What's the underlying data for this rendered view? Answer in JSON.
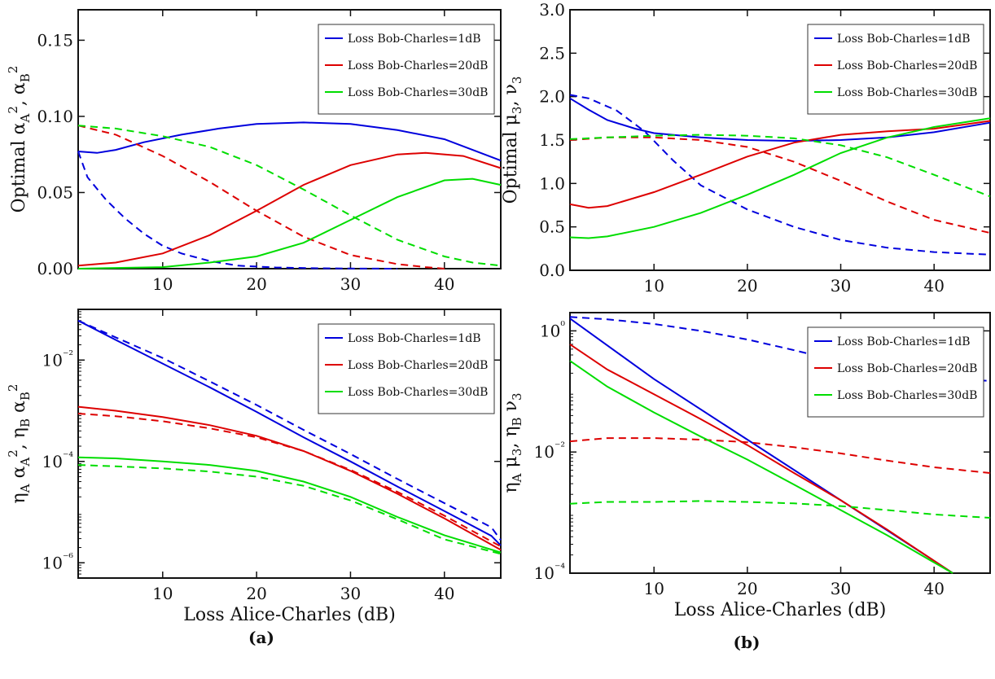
{
  "figure": {
    "captions": [
      "(a)",
      "(b)"
    ],
    "legend": [
      "Loss Bob-Charles=1dB",
      "Loss Bob-Charles=20dB",
      "Loss Bob-Charles=30dB"
    ],
    "colors": [
      "#0000dd",
      "#dd0000",
      "#00dd00"
    ]
  },
  "chart_data": [
    {
      "id": "top-left",
      "type": "line",
      "ylabel": "Optimal α_A², α_B²",
      "xlabel": "",
      "xlim": [
        1,
        46
      ],
      "ylim": [
        0,
        0.17
      ],
      "yscale": "linear",
      "xticks": [
        10,
        20,
        30,
        40
      ],
      "yticks": [
        0,
        0.05,
        0.1,
        0.15
      ],
      "ytick_labels": [
        "0.00",
        "0.05",
        "0.10",
        "0.15"
      ],
      "legend_position": "top-right",
      "series": [
        {
          "name": "Loss Bob-Charles=1dB",
          "style": "solid",
          "x": [
            1,
            3,
            5,
            8,
            12,
            16,
            20,
            25,
            30,
            35,
            40,
            43,
            46
          ],
          "y": [
            0.077,
            0.076,
            0.078,
            0.083,
            0.088,
            0.092,
            0.095,
            0.096,
            0.095,
            0.091,
            0.085,
            0.078,
            0.071
          ]
        },
        {
          "name": "Loss Bob-Charles=1dB",
          "style": "dashed",
          "x": [
            1,
            2,
            4,
            6,
            8,
            10,
            12,
            15,
            18,
            22,
            26,
            30,
            35
          ],
          "y": [
            0.077,
            0.06,
            0.045,
            0.033,
            0.023,
            0.015,
            0.01,
            0.005,
            0.002,
            0.0008,
            0.0003,
            0.0001,
            0
          ]
        },
        {
          "name": "Loss Bob-Charles=20dB",
          "style": "solid",
          "x": [
            1,
            5,
            10,
            15,
            20,
            25,
            30,
            35,
            38,
            42,
            46
          ],
          "y": [
            0.002,
            0.004,
            0.01,
            0.022,
            0.038,
            0.055,
            0.068,
            0.075,
            0.076,
            0.074,
            0.066
          ]
        },
        {
          "name": "Loss Bob-Charles=20dB",
          "style": "dashed",
          "x": [
            1,
            5,
            10,
            15,
            20,
            25,
            30,
            35,
            38,
            40
          ],
          "y": [
            0.094,
            0.088,
            0.074,
            0.057,
            0.038,
            0.021,
            0.009,
            0.003,
            0.001,
            0
          ]
        },
        {
          "name": "Loss Bob-Charles=30dB",
          "style": "solid",
          "x": [
            1,
            10,
            15,
            20,
            25,
            30,
            35,
            40,
            43,
            46
          ],
          "y": [
            0,
            0.001,
            0.004,
            0.008,
            0.017,
            0.032,
            0.047,
            0.058,
            0.059,
            0.055
          ]
        },
        {
          "name": "Loss Bob-Charles=30dB",
          "style": "dashed",
          "x": [
            1,
            5,
            10,
            15,
            20,
            25,
            30,
            35,
            40,
            43,
            46
          ],
          "y": [
            0.094,
            0.092,
            0.087,
            0.08,
            0.068,
            0.052,
            0.035,
            0.019,
            0.008,
            0.004,
            0.002
          ]
        }
      ]
    },
    {
      "id": "top-right",
      "type": "line",
      "ylabel": "Optimal μ_3, ν_3",
      "xlabel": "",
      "xlim": [
        1,
        46
      ],
      "ylim": [
        0,
        3
      ],
      "yscale": "linear",
      "xticks": [
        10,
        20,
        30,
        40
      ],
      "yticks": [
        0,
        0.5,
        1,
        1.5,
        2,
        2.5,
        3
      ],
      "ytick_labels": [
        "0.0",
        "0.5",
        "1.0",
        "1.5",
        "2.0",
        "2.5",
        "3.0"
      ],
      "legend_position": "top-right",
      "series": [
        {
          "name": "Loss Bob-Charles=1dB",
          "style": "solid",
          "x": [
            1,
            3,
            5,
            8,
            10,
            15,
            20,
            25,
            30,
            35,
            40,
            46
          ],
          "y": [
            1.98,
            1.85,
            1.73,
            1.63,
            1.58,
            1.53,
            1.5,
            1.49,
            1.5,
            1.53,
            1.59,
            1.7
          ]
        },
        {
          "name": "Loss Bob-Charles=1dB",
          "style": "dashed",
          "x": [
            1,
            3,
            6,
            9,
            12,
            15,
            20,
            25,
            30,
            35,
            40,
            46
          ],
          "y": [
            2.02,
            1.98,
            1.84,
            1.6,
            1.27,
            0.98,
            0.7,
            0.5,
            0.35,
            0.26,
            0.21,
            0.18
          ]
        },
        {
          "name": "Loss Bob-Charles=20dB",
          "style": "solid",
          "x": [
            1,
            3,
            5,
            10,
            15,
            20,
            25,
            30,
            35,
            40,
            46
          ],
          "y": [
            0.76,
            0.72,
            0.74,
            0.9,
            1.1,
            1.31,
            1.47,
            1.56,
            1.6,
            1.63,
            1.72
          ]
        },
        {
          "name": "Loss Bob-Charles=20dB",
          "style": "dashed",
          "x": [
            1,
            5,
            10,
            15,
            20,
            25,
            30,
            35,
            40,
            46
          ],
          "y": [
            1.5,
            1.53,
            1.53,
            1.5,
            1.42,
            1.25,
            1.03,
            0.79,
            0.58,
            0.43
          ]
        },
        {
          "name": "Loss Bob-Charles=30dB",
          "style": "solid",
          "x": [
            1,
            3,
            5,
            10,
            15,
            20,
            25,
            30,
            35,
            40,
            46
          ],
          "y": [
            0.38,
            0.37,
            0.39,
            0.5,
            0.66,
            0.87,
            1.1,
            1.35,
            1.53,
            1.65,
            1.75
          ]
        },
        {
          "name": "Loss Bob-Charles=30dB",
          "style": "dashed",
          "x": [
            1,
            5,
            10,
            15,
            20,
            25,
            30,
            35,
            40,
            46
          ],
          "y": [
            1.51,
            1.53,
            1.55,
            1.56,
            1.55,
            1.52,
            1.44,
            1.3,
            1.1,
            0.85
          ]
        }
      ]
    },
    {
      "id": "bottom-left",
      "type": "line",
      "ylabel": "η_A α_A², η_B α_B²",
      "xlabel": "Loss Alice-Charles (dB)",
      "xlim": [
        1,
        46
      ],
      "ylim": [
        5e-07,
        0.1
      ],
      "yscale": "log",
      "xticks": [
        10,
        20,
        30,
        40
      ],
      "yticks": [
        1e-06,
        0.0001,
        0.01
      ],
      "ytick_labels": [
        "10⁻⁶",
        "10⁻⁴",
        "10⁻²"
      ],
      "legend_position": "top-right",
      "series": [
        {
          "name": "Loss Bob-Charles=1dB",
          "style": "solid",
          "x": [
            1,
            5,
            10,
            15,
            20,
            25,
            30,
            35,
            40,
            45,
            46
          ],
          "y": [
            0.06,
            0.025,
            0.0085,
            0.0029,
            0.00095,
            0.0003,
            0.0001,
            3.2e-05,
            1.05e-05,
            3.4e-06,
            2.2e-06
          ]
        },
        {
          "name": "Loss Bob-Charles=1dB",
          "style": "dashed",
          "x": [
            1,
            5,
            10,
            15,
            20,
            25,
            30,
            35,
            40,
            45,
            46
          ],
          "y": [
            0.06,
            0.028,
            0.011,
            0.0038,
            0.0013,
            0.00042,
            0.00014,
            4.5e-05,
            1.5e-05,
            5e-06,
            2.8e-06
          ]
        },
        {
          "name": "Loss Bob-Charles=20dB",
          "style": "solid",
          "x": [
            1,
            5,
            10,
            15,
            20,
            25,
            30,
            35,
            40,
            46
          ],
          "y": [
            0.0012,
            0.001,
            0.00075,
            0.00052,
            0.00032,
            0.00016,
            6.5e-05,
            2.3e-05,
            7.5e-06,
            1.8e-06
          ]
        },
        {
          "name": "Loss Bob-Charles=20dB",
          "style": "dashed",
          "x": [
            1,
            5,
            10,
            15,
            20,
            25,
            30,
            35,
            40,
            46
          ],
          "y": [
            0.00088,
            0.00078,
            0.00062,
            0.00045,
            0.0003,
            0.00016,
            6.8e-05,
            2.5e-05,
            8.5e-06,
            2.1e-06
          ]
        },
        {
          "name": "Loss Bob-Charles=30dB",
          "style": "solid",
          "x": [
            1,
            5,
            10,
            15,
            20,
            25,
            30,
            35,
            40,
            46
          ],
          "y": [
            0.00012,
            0.000115,
            0.0001,
            8.5e-05,
            6.5e-05,
            4e-05,
            2e-05,
            8e-06,
            3.5e-06,
            1.6e-06
          ]
        },
        {
          "name": "Loss Bob-Charles=30dB",
          "style": "dashed",
          "x": [
            1,
            5,
            10,
            15,
            20,
            25,
            30,
            35,
            40,
            46
          ],
          "y": [
            8.5e-05,
            8e-05,
            7.3e-05,
            6.3e-05,
            5e-05,
            3.3e-05,
            1.7e-05,
            7.2e-06,
            2.9e-06,
            1.5e-06
          ]
        }
      ]
    },
    {
      "id": "bottom-right",
      "type": "line",
      "ylabel": "η_A μ_3, η_B ν_3",
      "xlabel": "Loss Alice-Charles (dB)",
      "xlim": [
        1,
        46
      ],
      "ylim": [
        0.0001,
        2
      ],
      "yscale": "log",
      "xticks": [
        10,
        20,
        30,
        40
      ],
      "yticks": [
        0.0001,
        0.01,
        1
      ],
      "ytick_labels": [
        "10⁻⁴",
        "10⁻²",
        "10⁰"
      ],
      "legend_position": "top-right",
      "series": [
        {
          "name": "Loss Bob-Charles=1dB",
          "style": "solid",
          "x": [
            1,
            10,
            20,
            30,
            40,
            42
          ],
          "y": [
            1.6,
            0.16,
            0.016,
            0.0016,
            0.00016,
            0.0001
          ]
        },
        {
          "name": "Loss Bob-Charles=1dB",
          "style": "dashed",
          "x": [
            1,
            5,
            10,
            15,
            20,
            25,
            30,
            35,
            40,
            46
          ],
          "y": [
            1.7,
            1.55,
            1.3,
            1.0,
            0.72,
            0.48,
            0.31,
            0.2,
            0.16,
            0.15
          ]
        },
        {
          "name": "Loss Bob-Charles=20dB",
          "style": "solid",
          "x": [
            1,
            5,
            10,
            15,
            20,
            25,
            30,
            35,
            40,
            42
          ],
          "y": [
            0.6,
            0.23,
            0.09,
            0.035,
            0.013,
            0.0045,
            0.0016,
            0.00052,
            0.00016,
            0.0001
          ]
        },
        {
          "name": "Loss Bob-Charles=20dB",
          "style": "dashed",
          "x": [
            1,
            5,
            10,
            15,
            20,
            25,
            30,
            35,
            40,
            46
          ],
          "y": [
            0.015,
            0.017,
            0.017,
            0.016,
            0.0145,
            0.012,
            0.0095,
            0.0072,
            0.0056,
            0.0045
          ]
        },
        {
          "name": "Loss Bob-Charles=30dB",
          "style": "solid",
          "x": [
            1,
            5,
            10,
            15,
            20,
            25,
            30,
            35,
            40,
            42
          ],
          "y": [
            0.32,
            0.12,
            0.045,
            0.018,
            0.0075,
            0.0029,
            0.0011,
            0.00042,
            0.00015,
            0.0001
          ]
        },
        {
          "name": "Loss Bob-Charles=30dB",
          "style": "dashed",
          "x": [
            1,
            5,
            10,
            15,
            20,
            25,
            30,
            35,
            40,
            46
          ],
          "y": [
            0.0014,
            0.0015,
            0.0015,
            0.00155,
            0.0015,
            0.00142,
            0.00128,
            0.0011,
            0.00093,
            0.00082
          ]
        }
      ]
    }
  ]
}
